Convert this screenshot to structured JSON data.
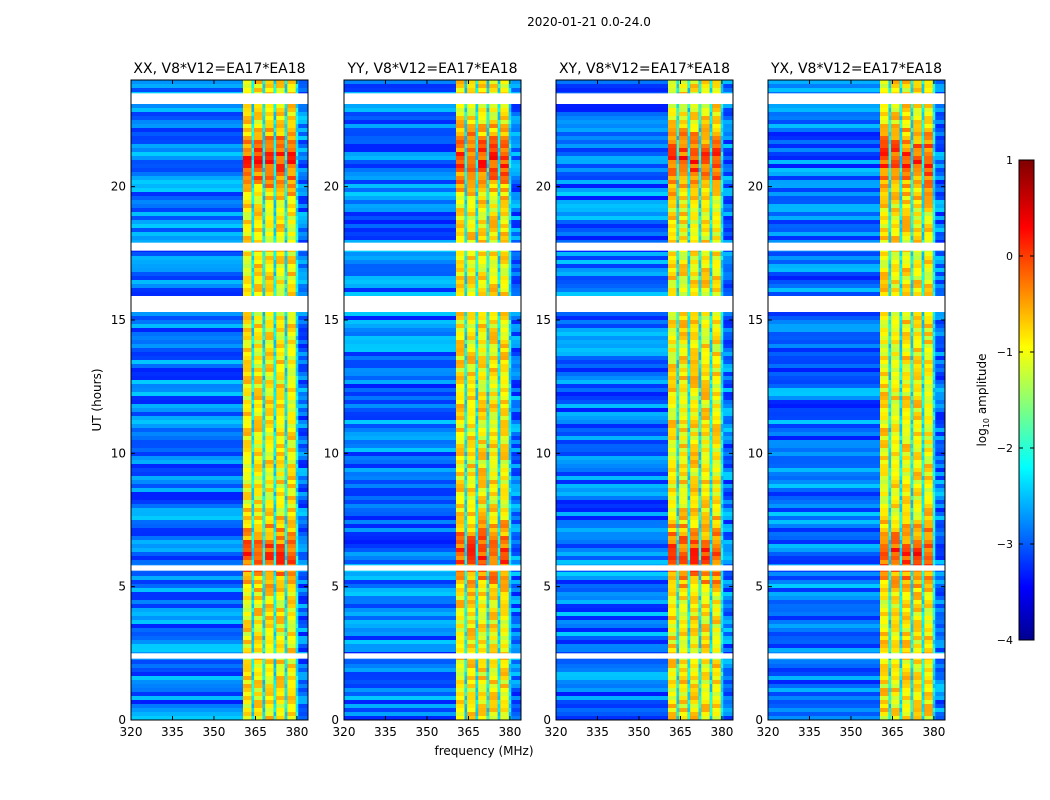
{
  "figure": {
    "suptitle": "2020-01-21 0.0-24.0",
    "xlabel": "frequency (MHz)",
    "ylabel": "UT (hours)"
  },
  "colorbar": {
    "label": "log",
    "label_sub": "10",
    "label_rest": " amplitude",
    "min": -4,
    "max": 1,
    "ticks": [
      "1",
      "0",
      "−1",
      "−2",
      "−3",
      "−4"
    ],
    "tick_values": [
      1,
      0,
      -1,
      -2,
      -3,
      -4
    ],
    "colormap": [
      "#00008f",
      "#0000ff",
      "#0080ff",
      "#00ffff",
      "#80ff80",
      "#ffff00",
      "#ff8000",
      "#ff0000",
      "#800000"
    ]
  },
  "chart_data": [
    {
      "type": "heatmap",
      "title": "XX, V8*V12=EA17*EA18",
      "xlim": [
        320,
        384
      ],
      "ylim": [
        0,
        24
      ],
      "xticks": [
        320,
        335,
        350,
        365,
        380
      ],
      "yticks": [
        0,
        5,
        10,
        15,
        20
      ],
      "xtick_labels": [
        "320",
        "335",
        "350",
        "365",
        "380"
      ],
      "ytick_labels": [
        "0",
        "5",
        "10",
        "15",
        "20"
      ],
      "background_log_amp": -2.8,
      "signal_band_mhz": [
        360.5,
        380.5
      ],
      "signal_log_amp": -0.8,
      "bright_hours": [
        6.2,
        21.0
      ],
      "gap_hours": [
        [
          23.1,
          23.5
        ],
        [
          15.3,
          15.9
        ],
        [
          17.6,
          17.9
        ],
        [
          5.6,
          5.8
        ],
        [
          2.3,
          2.5
        ]
      ]
    },
    {
      "type": "heatmap",
      "title": "YY, V8*V12=EA17*EA18",
      "xlim": [
        320,
        384
      ],
      "ylim": [
        0,
        24
      ],
      "xticks": [
        320,
        335,
        350,
        365,
        380
      ],
      "yticks": [
        0,
        5,
        10,
        15,
        20
      ],
      "xtick_labels": [
        "320",
        "335",
        "350",
        "365",
        "380"
      ],
      "ytick_labels": [
        "0",
        "5",
        "10",
        "15",
        "20"
      ],
      "background_log_amp": -2.8,
      "signal_band_mhz": [
        360.5,
        380.5
      ],
      "signal_log_amp": -0.8,
      "bright_hours": [
        6.2,
        21.0
      ],
      "gap_hours": [
        [
          23.1,
          23.5
        ],
        [
          15.3,
          15.9
        ],
        [
          17.6,
          17.9
        ],
        [
          5.6,
          5.8
        ],
        [
          2.3,
          2.5
        ]
      ]
    },
    {
      "type": "heatmap",
      "title": "XY, V8*V12=EA17*EA18",
      "xlim": [
        320,
        384
      ],
      "ylim": [
        0,
        24
      ],
      "xticks": [
        320,
        335,
        350,
        365,
        380
      ],
      "yticks": [
        0,
        5,
        10,
        15,
        20
      ],
      "xtick_labels": [
        "320",
        "335",
        "350",
        "365",
        "380"
      ],
      "ytick_labels": [
        "0",
        "5",
        "10",
        "15",
        "20"
      ],
      "background_log_amp": -2.8,
      "signal_band_mhz": [
        360.5,
        380.5
      ],
      "signal_log_amp": -0.8,
      "bright_hours": [
        6.2,
        21.0
      ],
      "gap_hours": [
        [
          23.1,
          23.5
        ],
        [
          15.3,
          15.9
        ],
        [
          17.6,
          17.9
        ],
        [
          5.6,
          5.8
        ],
        [
          2.3,
          2.5
        ]
      ]
    },
    {
      "type": "heatmap",
      "title": "YX, V8*V12=EA17*EA18",
      "xlim": [
        320,
        384
      ],
      "ylim": [
        0,
        24
      ],
      "xticks": [
        320,
        335,
        350,
        365,
        380
      ],
      "yticks": [
        0,
        5,
        10,
        15,
        20
      ],
      "xtick_labels": [
        "320",
        "335",
        "350",
        "365",
        "380"
      ],
      "ytick_labels": [
        "0",
        "5",
        "10",
        "15",
        "20"
      ],
      "background_log_amp": -2.8,
      "signal_band_mhz": [
        360.5,
        380.5
      ],
      "signal_log_amp": -0.8,
      "bright_hours": [
        6.2,
        21.0
      ],
      "gap_hours": [
        [
          23.1,
          23.5
        ],
        [
          15.3,
          15.9
        ],
        [
          17.6,
          17.9
        ],
        [
          5.6,
          5.8
        ],
        [
          2.3,
          2.5
        ]
      ]
    }
  ]
}
